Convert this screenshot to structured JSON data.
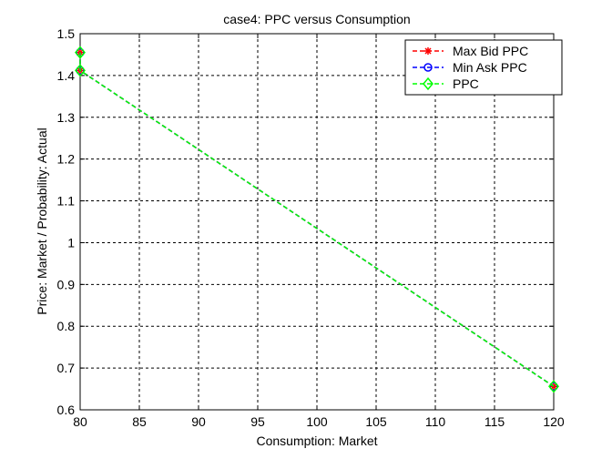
{
  "chart_data": {
    "type": "line",
    "title": "case4: PPC versus Consumption",
    "xlabel": "Consumption: Market",
    "ylabel": "Price: Market / Probability: Actual",
    "xlim": [
      80,
      120
    ],
    "ylim": [
      0.6,
      1.5
    ],
    "xticks": [
      80,
      85,
      90,
      95,
      100,
      105,
      110,
      115,
      120
    ],
    "yticks": [
      0.6,
      0.7,
      0.8,
      0.9,
      1,
      1.1,
      1.2,
      1.3,
      1.4,
      1.5
    ],
    "grid": true,
    "legend_position": "top-right",
    "series": [
      {
        "name": "Max Bid PPC",
        "color": "#ff0000",
        "marker": "star",
        "linestyle": "dashed",
        "x": [
          80,
          80,
          120
        ],
        "y": [
          1.455,
          1.412,
          0.656
        ]
      },
      {
        "name": "Min Ask PPC",
        "color": "#0000ff",
        "marker": "circle",
        "linestyle": "dashed",
        "x": [
          80,
          80,
          120
        ],
        "y": [
          1.455,
          1.412,
          0.656
        ]
      },
      {
        "name": "PPC",
        "color": "#00ff00",
        "marker": "diamond",
        "linestyle": "dashed",
        "x": [
          80,
          80,
          120
        ],
        "y": [
          1.455,
          1.412,
          0.656
        ]
      }
    ]
  }
}
